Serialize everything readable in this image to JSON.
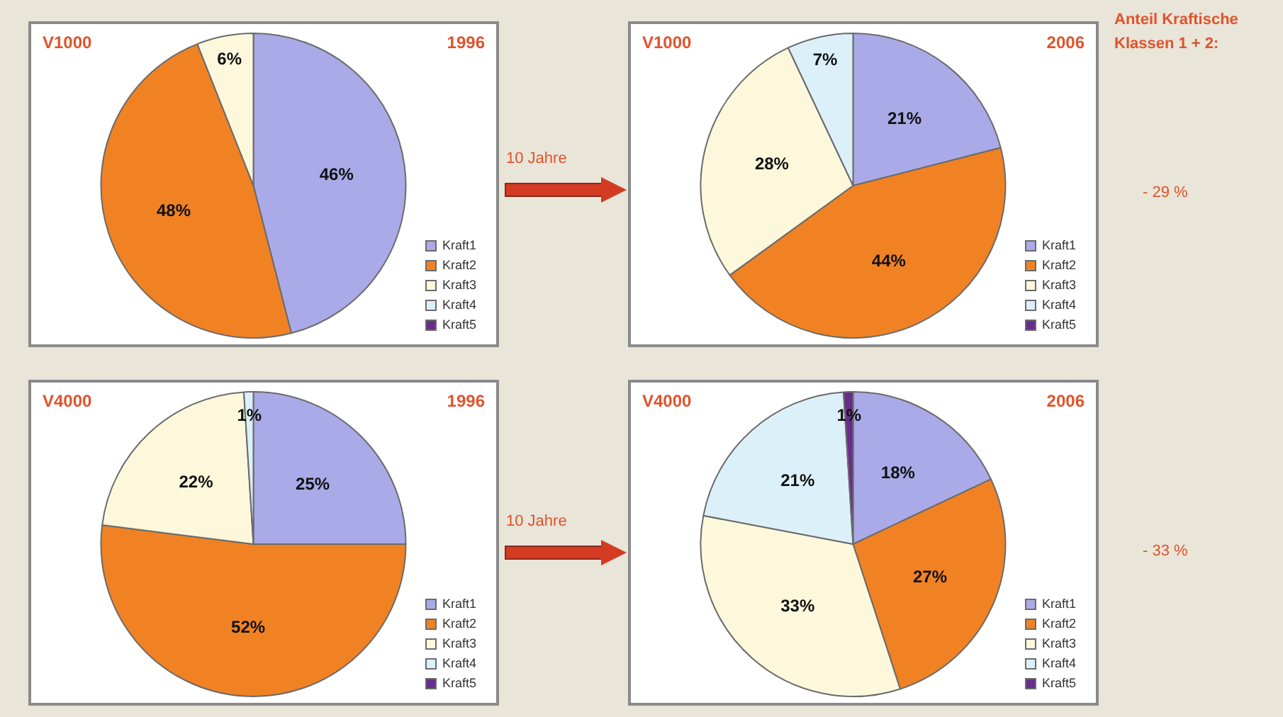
{
  "chart_data": [
    {
      "type": "pie",
      "title": "V1000",
      "subtitle": "1996",
      "categories": [
        "Kraft1",
        "Kraft2",
        "Kraft3",
        "Kraft4",
        "Kraft5"
      ],
      "values": [
        46,
        48,
        6,
        0,
        0
      ],
      "value_labels": [
        "46%",
        "48%",
        "6%",
        null,
        null
      ],
      "colors": [
        "#aaaae8",
        "#f08224",
        "#fdf8dc",
        "#dcf0fa",
        "#6a2c8c"
      ],
      "legend": "bottom right"
    },
    {
      "type": "pie",
      "title": "V1000",
      "subtitle": "2006",
      "categories": [
        "Kraft1",
        "Kraft2",
        "Kraft3",
        "Kraft4",
        "Kraft5"
      ],
      "values": [
        21,
        44,
        28,
        7,
        0
      ],
      "value_labels": [
        "21%",
        "44%",
        "28%",
        "7%",
        null
      ],
      "colors": [
        "#aaaae8",
        "#f08224",
        "#fdf8dc",
        "#dcf0fa",
        "#6a2c8c"
      ],
      "legend": "bottom right"
    },
    {
      "type": "pie",
      "title": "V4000",
      "subtitle": "1996",
      "categories": [
        "Kraft1",
        "Kraft2",
        "Kraft3",
        "Kraft4",
        "Kraft5"
      ],
      "values": [
        25,
        52,
        22,
        1,
        0
      ],
      "value_labels": [
        "25%",
        "52%",
        "22%",
        "1%",
        null
      ],
      "colors": [
        "#aaaae8",
        "#f08224",
        "#fdf8dc",
        "#dcf0fa",
        "#6a2c8c"
      ],
      "legend": "bottom right"
    },
    {
      "type": "pie",
      "title": "V4000",
      "subtitle": "2006",
      "categories": [
        "Kraft1",
        "Kraft2",
        "Kraft3",
        "Kraft4",
        "Kraft5"
      ],
      "values": [
        18,
        27,
        33,
        21,
        1
      ],
      "value_labels": [
        "18%",
        "27%",
        "33%",
        "21%",
        "1%"
      ],
      "colors": [
        "#aaaae8",
        "#f08224",
        "#fdf8dc",
        "#dcf0fa",
        "#6a2c8c"
      ],
      "legend": "bottom right"
    },
    {
      "type": "other",
      "annotations": [
        "10 Jahre",
        "10 Jahre",
        "Anteil Kraftische Klassen 1 + 2:",
        "- 29 %",
        "- 33 %"
      ]
    }
  ]
}
